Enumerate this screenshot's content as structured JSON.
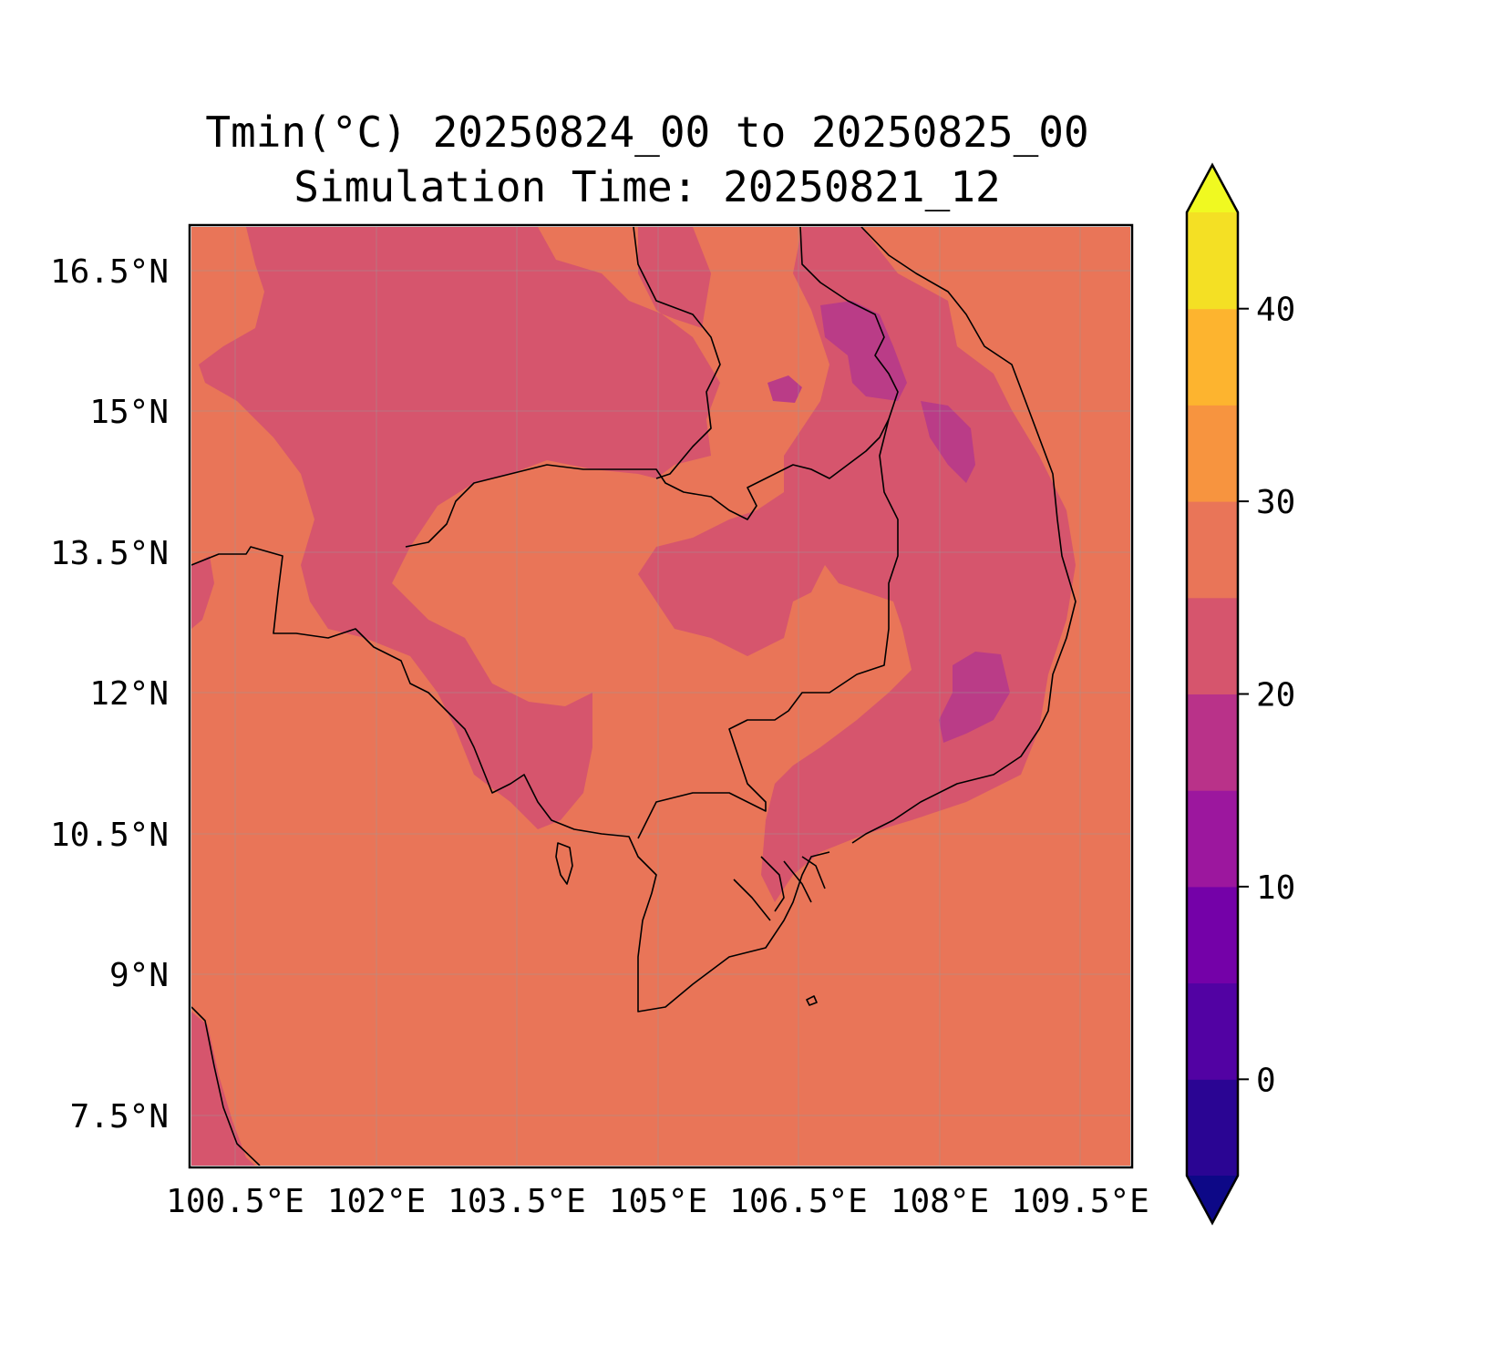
{
  "title": {
    "line1": "Tmin(°C) 20250824_00 to 20250825_00",
    "line2": "Simulation Time: 20250821_12"
  },
  "map": {
    "lat_ticks": [
      "16.5°N",
      "15°N",
      "13.5°N",
      "12°N",
      "10.5°N",
      "9°N",
      "7.5°N"
    ],
    "lon_ticks": [
      "100.5°E",
      "102°E",
      "103.5°E",
      "105°E",
      "106.5°E",
      "108°E",
      "109.5°E"
    ],
    "extent": {
      "lon": [
        100.5,
        110.5
      ],
      "lat": [
        7.0,
        17.0
      ]
    },
    "background_value_range": "25-30",
    "colors": {
      "range_25_30": "#e97558",
      "range_20_25": "#d6556d",
      "range_15_20": "#ba3c87",
      "coastline": "#000000",
      "grid": "#999999"
    }
  },
  "colorbar": {
    "tick_labels": [
      "0",
      "10",
      "20",
      "30",
      "40"
    ],
    "tick_values": [
      0,
      10,
      20,
      30,
      40
    ],
    "levels": [
      -5,
      0,
      5,
      10,
      15,
      20,
      25,
      30,
      35,
      40,
      45
    ],
    "extend": "both",
    "colors": [
      "#0d0887",
      "#2a0593",
      "#5202a3",
      "#7401a8",
      "#9c179e",
      "#b93289",
      "#d6556d",
      "#e97558",
      "#f7943f",
      "#fdb42f",
      "#f4e024",
      "#f0f921"
    ]
  }
}
